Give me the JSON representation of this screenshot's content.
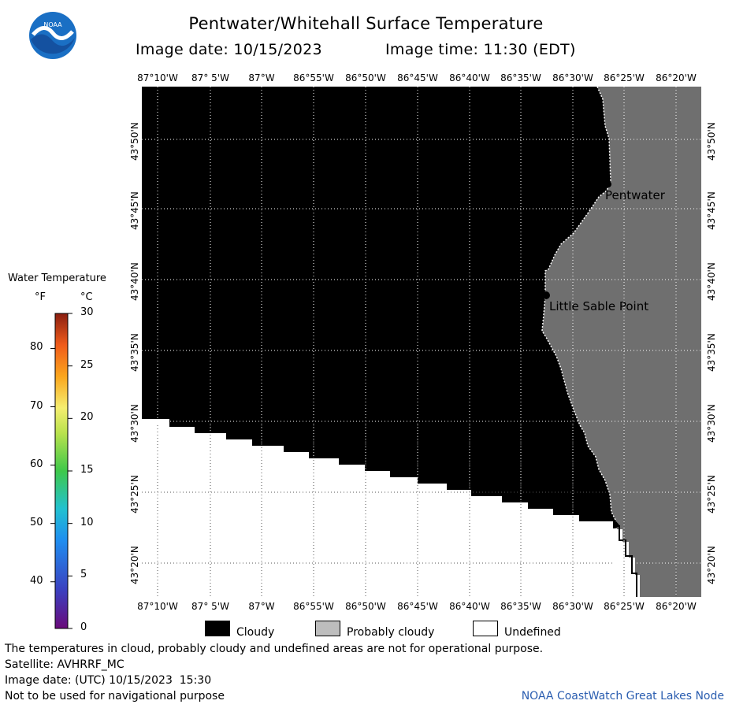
{
  "header": {
    "title": "Pentwater/Whitehall Surface Temperature",
    "image_date": "Image date: 10/15/2023",
    "image_time": "Image time: 11:30 (EDT)",
    "logo_text": "NOAA"
  },
  "map": {
    "lon_labels": [
      "87°10'W",
      "87° 5'W",
      "87°W",
      "86°55'W",
      "86°50'W",
      "86°45'W",
      "86°40'W",
      "86°35'W",
      "86°30'W",
      "86°25'W",
      "86°20'W"
    ],
    "lat_labels": [
      "43°50'N",
      "43°45'N",
      "43°40'N",
      "43°35'N",
      "43°30'N",
      "43°25'N",
      "43°20'N"
    ],
    "places": [
      {
        "name": "Pentwater"
      },
      {
        "name": "Little Sable Point"
      }
    ],
    "colors": {
      "cloudy": "#000000",
      "probably_cloudy": "#6f6f6f",
      "undefined": "#ffffff",
      "grid": "#ffffff"
    }
  },
  "color_scale": {
    "title": "Water Temperature",
    "unit_f": "°F",
    "unit_c": "°C",
    "f_ticks": [
      "80",
      "70",
      "60",
      "50",
      "40"
    ],
    "c_ticks": [
      "30",
      "25",
      "20",
      "15",
      "10",
      "5",
      "0"
    ]
  },
  "legend": {
    "cloudy": "Cloudy",
    "probably_cloudy": "Probably cloudy",
    "undefined": "Undefined"
  },
  "footer": {
    "disclaimer": "The temperatures in cloud, probably cloudy and undefined areas are not for operational purpose.",
    "satellite": "Satellite: AVHRRF_MC",
    "utc_date": "Image date: (UTC) 10/15/2023  15:30",
    "nav_warning": "Not to be used for navigational purpose",
    "credit": "NOAA CoastWatch Great Lakes Node"
  }
}
